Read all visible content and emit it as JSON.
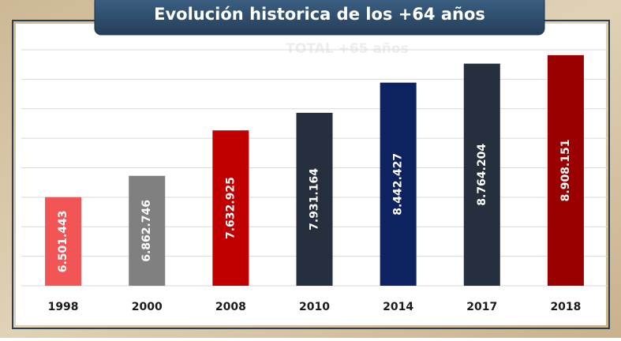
{
  "chart_data": {
    "type": "bar",
    "title": "Evolución historica de los +64 años",
    "subtitle": "TOTAL +65 años",
    "categories": [
      "1998",
      "2000",
      "2008",
      "2010",
      "2014",
      "2017",
      "2018"
    ],
    "values": [
      6501443,
      6862746,
      7632925,
      7931164,
      8442427,
      8764204,
      8908151
    ],
    "value_labels": [
      "6.501.443",
      "6.862.746",
      "7.632.925",
      "7.931.164",
      "8.442.427",
      "8.764.204",
      "8.908.151"
    ],
    "colors": [
      "#f25556",
      "#808080",
      "#c00000",
      "#262f3d",
      "#0d2260",
      "#262f3d",
      "#9a0000"
    ],
    "ylim": [
      5000000,
      9000000
    ],
    "yticks": [
      5000000,
      5500000,
      6000000,
      6500000,
      7000000,
      7500000,
      8000000,
      8500000,
      9000000
    ],
    "grid": true
  }
}
